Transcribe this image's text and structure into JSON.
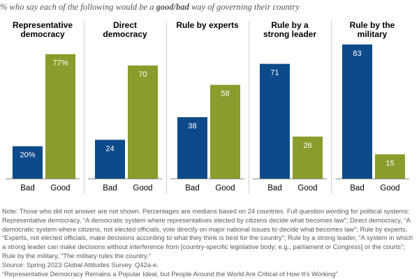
{
  "subtitle": {
    "prefix": "% who say each of the following would be a ",
    "good": "good",
    "slash": "/",
    "bad": "bad",
    "suffix": " way of governing their country"
  },
  "colors": {
    "bad": "#0d4a8a",
    "good": "#8b9c2c",
    "divider": "#cfcfcf",
    "axis": "#888888"
  },
  "chart_data": {
    "type": "bar",
    "title": "% who say each of the following would be a good/bad way of governing their country",
    "groups": [
      {
        "label_lines": [
          "Representative",
          "democracy"
        ],
        "bars": [
          {
            "name": "Bad",
            "value": 20,
            "label": "20%"
          },
          {
            "name": "Good",
            "value": 77,
            "label": "77%"
          }
        ]
      },
      {
        "label_lines": [
          "Direct",
          "democracy"
        ],
        "bars": [
          {
            "name": "Bad",
            "value": 24,
            "label": "24"
          },
          {
            "name": "Good",
            "value": 70,
            "label": "70"
          }
        ]
      },
      {
        "label_lines": [
          "Rule by experts"
        ],
        "bars": [
          {
            "name": "Bad",
            "value": 38,
            "label": "38"
          },
          {
            "name": "Good",
            "value": 58,
            "label": "58"
          }
        ]
      },
      {
        "label_lines": [
          "Rule by a",
          "strong leader"
        ],
        "bars": [
          {
            "name": "Bad",
            "value": 71,
            "label": "71"
          },
          {
            "name": "Good",
            "value": 26,
            "label": "26"
          }
        ]
      },
      {
        "label_lines": [
          "Rule by the",
          "military"
        ],
        "bars": [
          {
            "name": "Bad",
            "value": 83,
            "label": "83"
          },
          {
            "name": "Good",
            "value": 15,
            "label": "15"
          }
        ]
      }
    ],
    "ylim": [
      0,
      100
    ],
    "xlabel": "",
    "ylabel": "",
    "grid": false,
    "legend": "none"
  },
  "notes": {
    "note": "Note: Those who did not answer are not shown. Percentages are medians based on 24 countries. Full question wording for political systems: Representative democracy, “A democratic system where representatives elected by citizens decide what becomes law”; Direct democracy, “A democratic system where citizens, not elected officials, vote directly on major national issues to decide what becomes law”; Rule by experts, “Experts, not elected officials, make decisions according to what they think is best for the country”; Rule by a strong leader, “A system in which a strong leader can make decisions without interference from [country-specific legislative body; e.g., parliament or Congress] or the courts”; Rule by the military, “The military rules the country.”",
    "source": "Source: Spring 2023 Global Attitudes Survey. Q42a-e.",
    "report": "“Representative Democracy Remains a Popular Ideal, but People Around the World Are Critical of How It’s Working”"
  }
}
